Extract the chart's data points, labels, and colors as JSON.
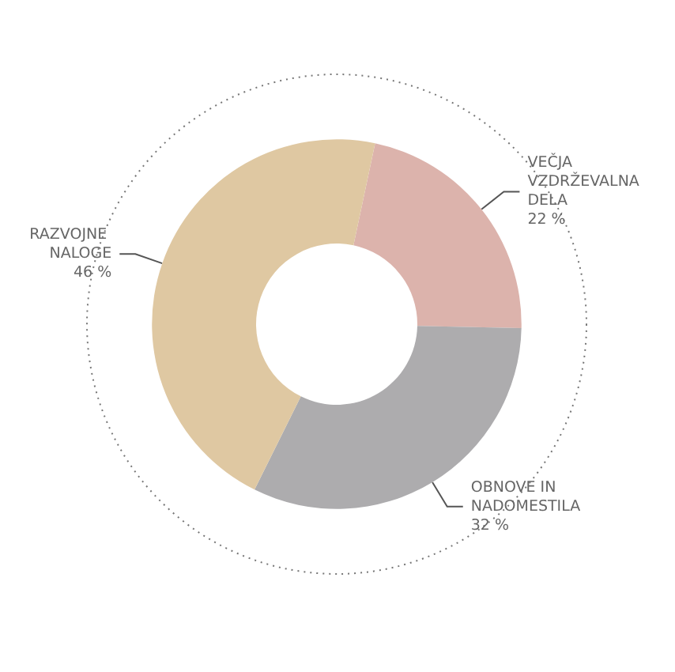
{
  "chart_data": {
    "type": "donut",
    "categories": [
      "VEČJA VZDRŽEVALNA DELA",
      "OBNOVE IN NADOMESTILA",
      "RAZVOJNE NALOGE"
    ],
    "values": [
      22,
      32,
      46
    ],
    "colors": [
      "#dcb3ac",
      "#adacae",
      "#dfc8a2"
    ],
    "value_labels": [
      "22 %",
      "32 %",
      "46 %"
    ],
    "legend": false
  }
}
